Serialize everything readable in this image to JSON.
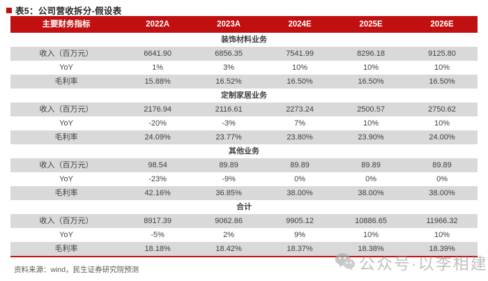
{
  "title": "表5：公司营收拆分-假设表",
  "table": {
    "header": [
      "主要财务指标",
      "2022A",
      "2023A",
      "2024E",
      "2025E",
      "2026E"
    ],
    "sections": [
      {
        "label": "装饰材料业务",
        "rows": [
          {
            "metric": "收入（百万元）",
            "values": [
              "6641.90",
              "6856.35",
              "7541.99",
              "8296.18",
              "9125.80"
            ],
            "shaded": true
          },
          {
            "metric": "YoY",
            "values": [
              "1%",
              "3%",
              "10%",
              "10%",
              "10%"
            ],
            "shaded": false
          },
          {
            "metric": "毛利率",
            "values": [
              "15.88%",
              "16.52%",
              "16.50%",
              "16.50%",
              "16.50%"
            ],
            "shaded": true
          }
        ]
      },
      {
        "label": "定制家居业务",
        "rows": [
          {
            "metric": "收入（百万元）",
            "values": [
              "2176.94",
              "2116.61",
              "2273.24",
              "2500.57",
              "2750.62"
            ],
            "shaded": true
          },
          {
            "metric": "YoY",
            "values": [
              "-20%",
              "-3%",
              "7%",
              "10%",
              "10%"
            ],
            "shaded": false
          },
          {
            "metric": "毛利率",
            "values": [
              "24.09%",
              "23.77%",
              "23.80%",
              "23.90%",
              "24.00%"
            ],
            "shaded": true
          }
        ]
      },
      {
        "label": "其他业务",
        "rows": [
          {
            "metric": "收入（百万元）",
            "values": [
              "98.54",
              "89.89",
              "89.89",
              "89.89",
              "89.89"
            ],
            "shaded": true
          },
          {
            "metric": "YoY",
            "values": [
              "-23%",
              "-9%",
              "0%",
              "0%",
              "0%"
            ],
            "shaded": false
          },
          {
            "metric": "毛利率",
            "values": [
              "42.16%",
              "36.85%",
              "38.00%",
              "38.00%",
              "38.00%"
            ],
            "shaded": true
          }
        ]
      },
      {
        "label": "合计",
        "rows": [
          {
            "metric": "收入（百万元）",
            "values": [
              "8917.39",
              "9062.86",
              "9905.12",
              "10886.65",
              "11966.32"
            ],
            "shaded": true
          },
          {
            "metric": "YoY",
            "values": [
              "-5%",
              "2%",
              "9%",
              "10%",
              "10%"
            ],
            "shaded": false
          },
          {
            "metric": "毛利率",
            "values": [
              "18.18%",
              "18.42%",
              "18.37%",
              "18.38%",
              "18.39%"
            ],
            "shaded": true
          }
        ]
      }
    ]
  },
  "footer": {
    "source": "资料来源：wind，民生证券研究院预测"
  },
  "watermark": {
    "icon": "wechat-icon",
    "text": "公众号·以李相建"
  },
  "colors": {
    "accent_red": "#C20F0F",
    "row_shade": "#D9D9D9",
    "header_text": "#FFFFFF",
    "body_text": "#3F3F3F",
    "source_text": "#595959",
    "watermark_gray": "#A9A9A9"
  }
}
